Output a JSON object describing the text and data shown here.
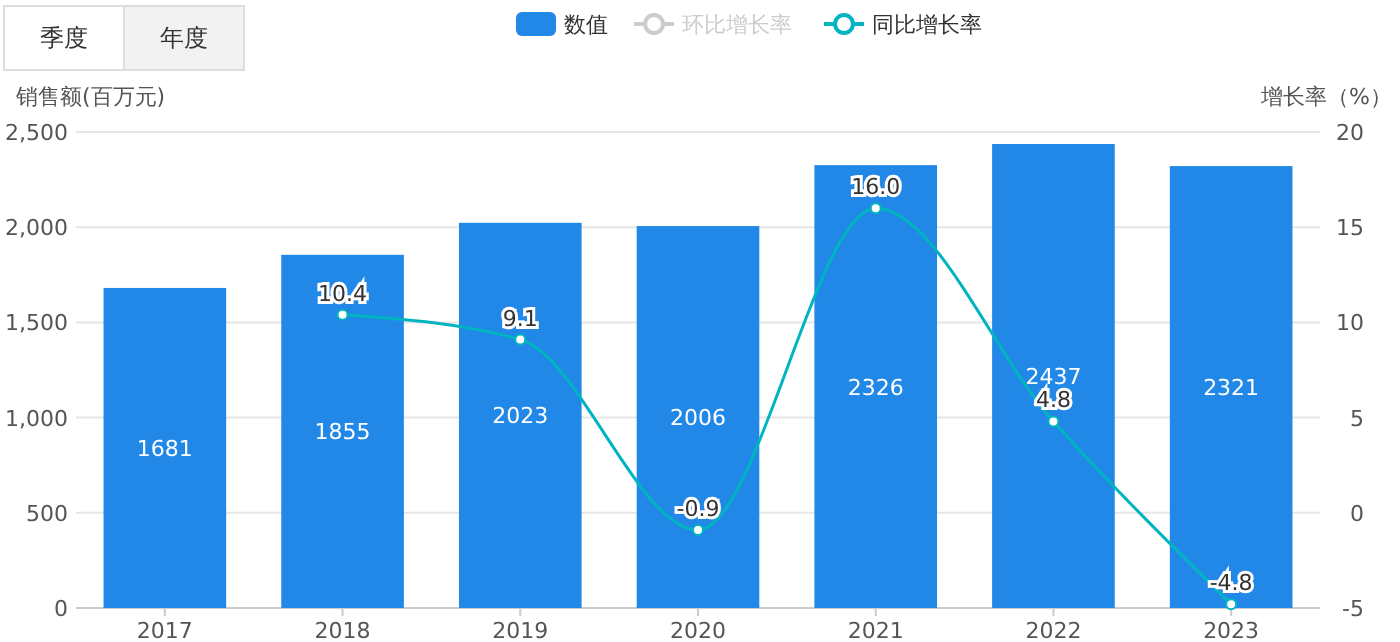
{
  "chart_data": {
    "type": "bar",
    "ylabel": "销售额(百万元)",
    "y2label": "增长率（%）",
    "categories": [
      "2017",
      "2018",
      "2019",
      "2020",
      "2021",
      "2022",
      "2023"
    ],
    "series": [
      {
        "name": "数值",
        "color": "#2288e8",
        "values": [
          1681,
          1855,
          2023,
          2006,
          2326,
          2437,
          2321
        ]
      },
      {
        "name": "环比增长率",
        "type": "line",
        "color": "#cccccc",
        "values": [
          null,
          null,
          null,
          null,
          null,
          null,
          null
        ]
      },
      {
        "name": "同比增长率",
        "type": "line",
        "axis": "y2",
        "color": "#00b5c0",
        "values": [
          null,
          10.4,
          9.1,
          -0.9,
          16.0,
          4.8,
          -4.8
        ],
        "value_labels": [
          null,
          "10.4",
          "9.1",
          "-0.9",
          "16.0",
          "4.8",
          "-4.8"
        ]
      }
    ],
    "data_labels": true,
    "ylim": [
      0,
      2500
    ],
    "yticks": [
      0,
      {
        "value": 500,
        "label": "500"
      },
      {
        "value": 1000,
        "label": "1,000"
      },
      {
        "value": 1500,
        "label": "1,500"
      },
      {
        "value": 2000,
        "label": "2,000"
      },
      {
        "value": 2500,
        "label": "2,500"
      }
    ],
    "y2lim": [
      -5,
      20
    ],
    "y2ticks": [
      -5,
      0,
      5,
      10,
      15,
      20
    ],
    "grid": "y",
    "legend": "top",
    "marker": "circle",
    "annotations": [
      "季度",
      "年度"
    ]
  }
}
